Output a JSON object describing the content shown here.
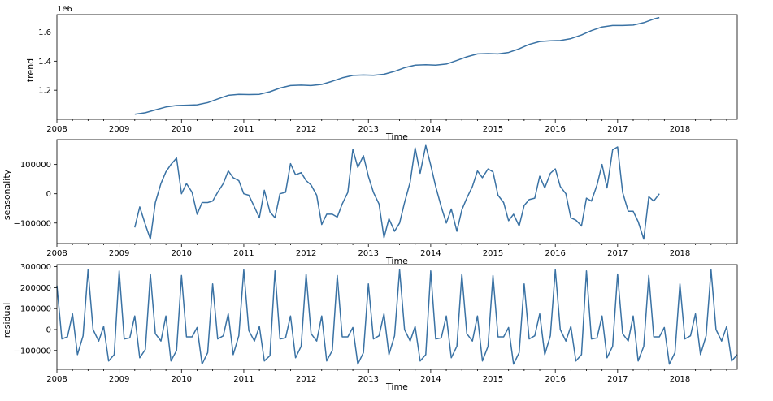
{
  "colors": {
    "series": "#3a72a4"
  },
  "chart_data": [
    {
      "type": "line",
      "ylabel": "trend",
      "xlabel": "Time",
      "offset_text": "1e6",
      "xlim": [
        2008.0,
        2018.92
      ],
      "ylim": [
        1.0,
        1.72
      ],
      "yticks": [
        1.2,
        1.4,
        1.6
      ],
      "ytick_labels": [
        "1.2",
        "1.4",
        "1.6"
      ],
      "xticks": [
        2008,
        2009,
        2010,
        2011,
        2012,
        2013,
        2014,
        2015,
        2016,
        2017,
        2018
      ],
      "xtick_labels": [
        "2008",
        "2009",
        "2010",
        "2011",
        "2012",
        "2013",
        "2014",
        "2015",
        "2016",
        "2017",
        "2018"
      ],
      "series": [
        {
          "x": [
            2009.25,
            2009.42,
            2009.58,
            2009.75,
            2009.92,
            2010.08,
            2010.25,
            2010.42,
            2010.58,
            2010.75,
            2010.92,
            2011.08,
            2011.25,
            2011.42,
            2011.58,
            2011.75,
            2011.92,
            2012.08,
            2012.25,
            2012.42,
            2012.58,
            2012.75,
            2012.92,
            2013.08,
            2013.25,
            2013.42,
            2013.58,
            2013.75,
            2013.92,
            2014.08,
            2014.25,
            2014.42,
            2014.58,
            2014.75,
            2014.92,
            2015.08,
            2015.25,
            2015.42,
            2015.58,
            2015.75,
            2015.92,
            2016.08,
            2016.25,
            2016.42,
            2016.58,
            2016.75,
            2016.92,
            2017.08,
            2017.25,
            2017.42,
            2017.58,
            2017.67
          ],
          "values": [
            1.035,
            1.045,
            1.065,
            1.085,
            1.095,
            1.097,
            1.1,
            1.115,
            1.14,
            1.165,
            1.172,
            1.17,
            1.172,
            1.19,
            1.215,
            1.232,
            1.235,
            1.232,
            1.24,
            1.262,
            1.285,
            1.302,
            1.305,
            1.303,
            1.31,
            1.33,
            1.355,
            1.372,
            1.375,
            1.372,
            1.38,
            1.405,
            1.43,
            1.45,
            1.452,
            1.45,
            1.46,
            1.485,
            1.515,
            1.535,
            1.54,
            1.542,
            1.555,
            1.58,
            1.61,
            1.635,
            1.645,
            1.645,
            1.648,
            1.665,
            1.69,
            1.7
          ]
        }
      ]
    },
    {
      "type": "line",
      "ylabel": "seasonality",
      "xlabel": "Time",
      "xlim": [
        2008.0,
        2018.92
      ],
      "ylim": [
        -170000,
        185000
      ],
      "yticks": [
        -100000,
        0,
        100000
      ],
      "ytick_labels": [
        "−100000",
        "0",
        "100000"
      ],
      "xticks": [
        2008,
        2009,
        2010,
        2011,
        2012,
        2013,
        2014,
        2015,
        2016,
        2017,
        2018
      ],
      "xtick_labels": [
        "2008",
        "2009",
        "2010",
        "2011",
        "2012",
        "2013",
        "2014",
        "2015",
        "2016",
        "2017",
        "2018"
      ],
      "series": [
        {
          "x": [
            2009.25,
            2009.33,
            2009.42,
            2009.5,
            2009.58,
            2009.67,
            2009.75,
            2009.83,
            2009.92,
            2010.0,
            2010.08,
            2010.17,
            2010.25,
            2010.33,
            2010.42,
            2010.5,
            2010.58,
            2010.67,
            2010.75,
            2010.83,
            2010.92,
            2011.0,
            2011.08,
            2011.17,
            2011.25,
            2011.33,
            2011.42,
            2011.5,
            2011.58,
            2011.67,
            2011.75,
            2011.83,
            2011.92,
            2012.0,
            2012.08,
            2012.17,
            2012.25,
            2012.33,
            2012.42,
            2012.5,
            2012.58,
            2012.67,
            2012.75,
            2012.83,
            2012.92,
            2013.0,
            2013.08,
            2013.17,
            2013.25,
            2013.33,
            2013.42,
            2013.5,
            2013.58,
            2013.67,
            2013.75,
            2013.83,
            2013.92,
            2014.0,
            2014.08,
            2014.17,
            2014.25,
            2014.33,
            2014.42,
            2014.5,
            2014.58,
            2014.67,
            2014.75,
            2014.83,
            2014.92,
            2015.0,
            2015.08,
            2015.17,
            2015.25,
            2015.33,
            2015.42,
            2015.5,
            2015.58,
            2015.67,
            2015.75,
            2015.83,
            2015.92,
            2016.0,
            2016.08,
            2016.17,
            2016.25,
            2016.33,
            2016.42,
            2016.5,
            2016.58,
            2016.67,
            2016.75,
            2016.83,
            2016.92,
            2017.0,
            2017.08,
            2017.17,
            2017.25,
            2017.33,
            2017.42,
            2017.5,
            2017.58,
            2017.67
          ],
          "values": [
            -115000,
            -45000,
            -105000,
            -155000,
            -30000,
            35000,
            75000,
            100000,
            122000,
            0,
            35000,
            5000,
            -70000,
            -30000,
            -30000,
            -25000,
            5000,
            35000,
            78000,
            55000,
            45000,
            0,
            -5000,
            -45000,
            -82000,
            12000,
            -62000,
            -82000,
            0,
            5000,
            103000,
            65000,
            72000,
            45000,
            30000,
            -5000,
            -105000,
            -70000,
            -70000,
            -80000,
            -35000,
            5000,
            152000,
            90000,
            130000,
            60000,
            5000,
            -35000,
            -150000,
            -85000,
            -128000,
            -100000,
            -30000,
            40000,
            157000,
            70000,
            165000,
            98000,
            25000,
            -45000,
            -100000,
            -52000,
            -128000,
            -55000,
            -15000,
            25000,
            78000,
            55000,
            85000,
            75000,
            -5000,
            -30000,
            -92000,
            -70000,
            -110000,
            -40000,
            -20000,
            -15000,
            60000,
            20000,
            70000,
            85000,
            25000,
            0,
            -82000,
            -90000,
            -110000,
            -15000,
            -25000,
            30000,
            100000,
            20000,
            150000,
            160000,
            5000,
            -60000,
            -60000,
            -95000,
            -155000,
            -10000,
            -25000,
            0
          ]
        }
      ]
    },
    {
      "type": "line",
      "ylabel": "residual",
      "xlabel": "Time",
      "xlim": [
        2008.0,
        2018.92
      ],
      "ylim": [
        -190000,
        310000
      ],
      "yticks": [
        -100000,
        0,
        100000,
        200000,
        300000
      ],
      "ytick_labels": [
        "−100000",
        "0",
        "100000",
        "200000",
        "300000"
      ],
      "xticks": [
        2008,
        2009,
        2010,
        2011,
        2012,
        2013,
        2014,
        2015,
        2016,
        2017,
        2018
      ],
      "xtick_labels": [
        "2008",
        "2009",
        "2010",
        "2011",
        "2012",
        "2013",
        "2014",
        "2015",
        "2016",
        "2017",
        "2018"
      ],
      "series": [
        {
          "x": [
            2008.0,
            2008.08,
            2008.17,
            2008.25,
            2008.33,
            2008.42,
            2008.5,
            2008.58,
            2008.67,
            2008.75,
            2008.83,
            2008.92,
            2009.0,
            2009.08,
            2009.17,
            2009.25,
            2009.33,
            2009.42,
            2009.5,
            2009.58,
            2009.67,
            2009.75,
            2009.83,
            2009.92,
            2010.0,
            2010.08,
            2010.17,
            2010.25,
            2010.33,
            2010.42,
            2010.5,
            2010.58,
            2010.67,
            2010.75,
            2010.83,
            2010.92,
            2011.0,
            2011.08,
            2011.17,
            2011.25,
            2011.33,
            2011.42,
            2011.5,
            2011.58,
            2011.67,
            2011.75,
            2011.83,
            2011.92,
            2012.0,
            2012.08,
            2012.17,
            2012.25,
            2012.33,
            2012.42,
            2012.5,
            2012.58,
            2012.67,
            2012.75,
            2012.83,
            2012.92,
            2013.0,
            2013.08,
            2013.17,
            2013.25,
            2013.33,
            2013.42,
            2013.5,
            2013.58,
            2013.67,
            2013.75,
            2013.83,
            2013.92,
            2014.0,
            2014.08,
            2014.17,
            2014.25,
            2014.33,
            2014.42,
            2014.5,
            2014.58,
            2014.67,
            2014.75,
            2014.83,
            2014.92,
            2015.0,
            2015.08,
            2015.17,
            2015.25,
            2015.33,
            2015.42,
            2015.5,
            2015.58,
            2015.67,
            2015.75,
            2015.83,
            2015.92,
            2016.0,
            2016.08,
            2016.17,
            2016.25,
            2016.33,
            2016.42,
            2016.5,
            2016.58,
            2016.67,
            2016.75,
            2016.83,
            2016.92,
            2017.0,
            2017.08,
            2017.17,
            2017.25,
            2017.33,
            2017.42,
            2017.5,
            2017.58,
            2017.67,
            2017.75,
            2017.83,
            2017.92,
            2018.0,
            2018.08,
            2018.17,
            2018.25,
            2018.33,
            2018.42,
            2018.5,
            2018.58,
            2018.67,
            2018.75,
            2018.83,
            2018.92
          ],
          "values": [
            210000,
            -45000,
            -35000,
            75000,
            -120000,
            -30000,
            285000,
            0,
            -55000,
            15000,
            -150000,
            -120000,
            280000,
            -45000,
            -40000,
            65000,
            -135000,
            -95000,
            265000,
            -20000,
            -55000,
            65000,
            -150000,
            -100000,
            258000,
            -35000,
            -35000,
            10000,
            -165000,
            -110000,
            218000,
            -45000,
            -30000,
            75000,
            -120000,
            -30000,
            285000,
            -5000,
            -55000,
            15000,
            -150000,
            -125000,
            280000,
            -45000,
            -40000,
            65000,
            -135000,
            -80000,
            265000,
            -20000,
            -55000,
            65000,
            -150000,
            -100000,
            258000,
            -35000,
            -35000,
            10000,
            -165000,
            -110000,
            218000,
            -45000,
            -30000,
            75000,
            -120000,
            -30000,
            285000,
            0,
            -55000,
            15000,
            -150000,
            -120000,
            280000,
            -45000,
            -40000,
            65000,
            -135000,
            -80000,
            265000,
            -20000,
            -55000,
            65000,
            -150000,
            -80000,
            258000,
            -35000,
            -35000,
            10000,
            -165000,
            -110000,
            218000,
            -45000,
            -30000,
            75000,
            -120000,
            -30000,
            285000,
            0,
            -55000,
            15000,
            -150000,
            -120000,
            280000,
            -45000,
            -40000,
            65000,
            -135000,
            -80000,
            265000,
            -20000,
            -55000,
            65000,
            -150000,
            -80000,
            258000,
            -35000,
            -35000,
            10000,
            -165000,
            -110000,
            218000,
            -45000,
            -30000,
            75000,
            -120000,
            -30000,
            285000,
            0,
            -55000,
            15000,
            -150000,
            -120000
          ]
        }
      ]
    }
  ]
}
